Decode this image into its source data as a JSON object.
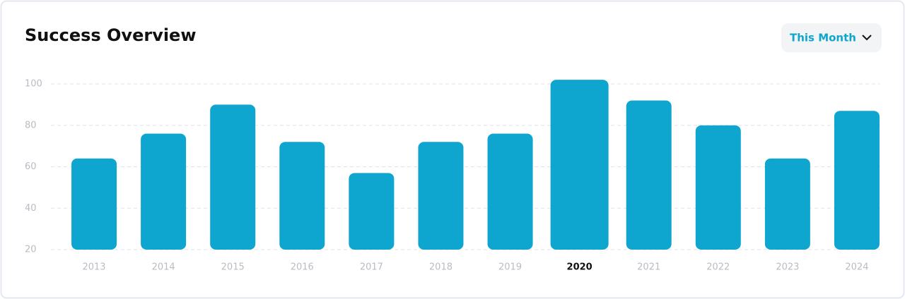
{
  "chart_data": {
    "type": "bar",
    "title": "Success Overview",
    "categories": [
      "2013",
      "2014",
      "2015",
      "2016",
      "2017",
      "2018",
      "2019",
      "2020",
      "2021",
      "2022",
      "2023",
      "2024"
    ],
    "values": [
      64,
      76,
      90,
      72,
      57,
      72,
      76,
      102,
      92,
      80,
      64,
      87
    ],
    "color": "#0ea5cf",
    "ylim": [
      20,
      104
    ],
    "yticks": [
      20,
      40,
      60,
      80,
      100
    ],
    "grid": true,
    "highlight_index": 7
  },
  "filter": {
    "label": "This Month"
  }
}
